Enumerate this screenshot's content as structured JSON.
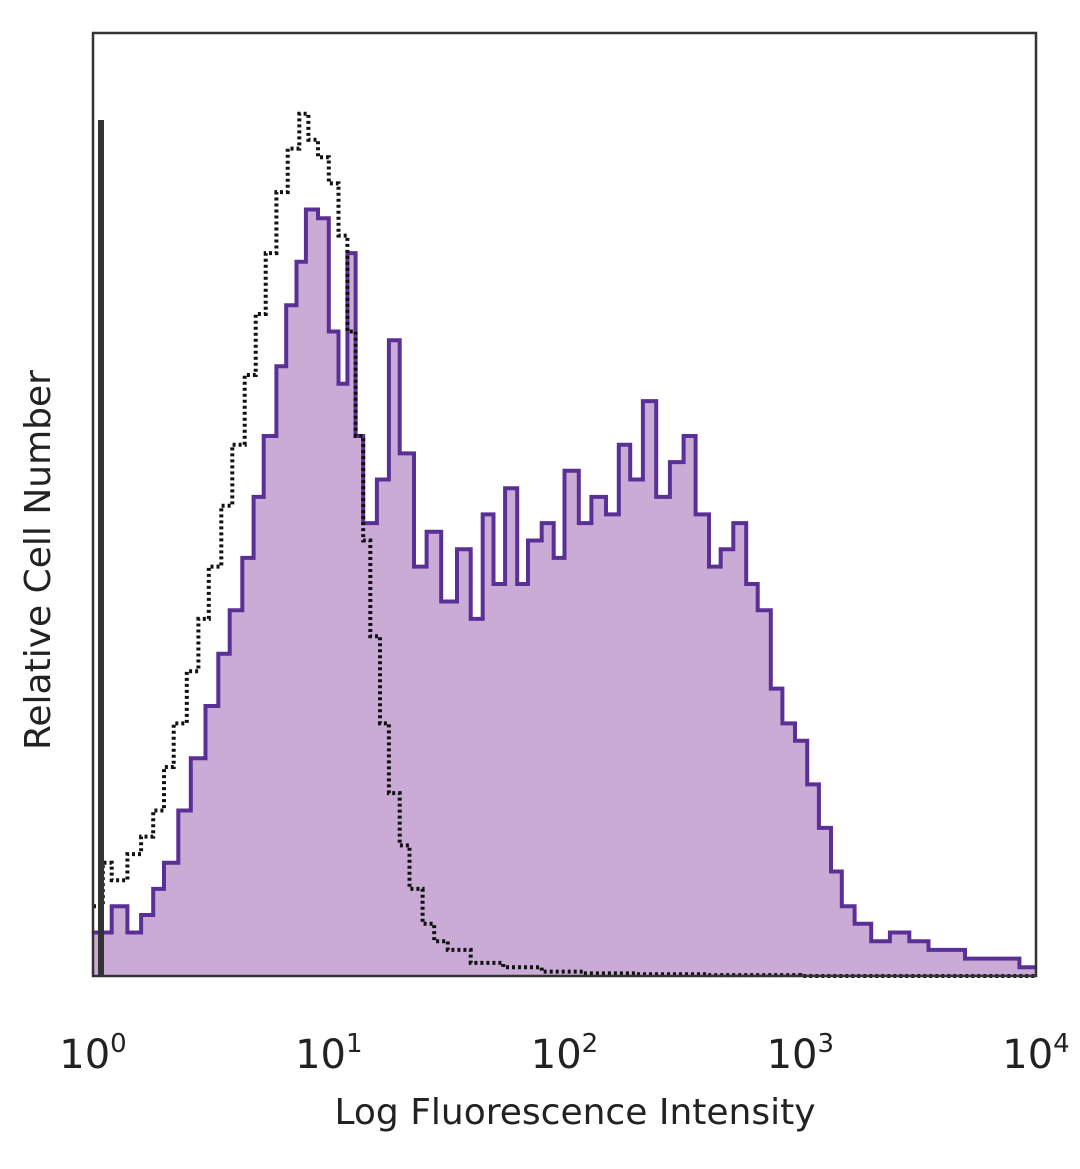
{
  "chart_data": {
    "type": "histogram",
    "xlabel": "Log Fluorescence Intensity",
    "ylabel": "Relative Cell Number",
    "x_scale": "log",
    "xlim": [
      1,
      10000
    ],
    "ylim": [
      0,
      1
    ],
    "x_ticks": [
      {
        "base": "10",
        "exp": "0",
        "value": 1
      },
      {
        "base": "10",
        "exp": "1",
        "value": 10
      },
      {
        "base": "10",
        "exp": "2",
        "value": 100
      },
      {
        "base": "10",
        "exp": "3",
        "value": 1000
      },
      {
        "base": "10",
        "exp": "4",
        "value": 10000
      }
    ],
    "grid": false,
    "series": [
      {
        "style": "filled",
        "color": "#5a3096",
        "fill": "#c9abd6",
        "points": [
          [
            1.0,
            0.05
          ],
          [
            1.2,
            0.08
          ],
          [
            1.4,
            0.05
          ],
          [
            1.6,
            0.07
          ],
          [
            1.8,
            0.1
          ],
          [
            2.0,
            0.13
          ],
          [
            2.3,
            0.19
          ],
          [
            2.6,
            0.25
          ],
          [
            3.0,
            0.31
          ],
          [
            3.4,
            0.37
          ],
          [
            3.8,
            0.42
          ],
          [
            4.3,
            0.48
          ],
          [
            4.8,
            0.55
          ],
          [
            5.3,
            0.62
          ],
          [
            6.0,
            0.7
          ],
          [
            6.6,
            0.77
          ],
          [
            7.3,
            0.82
          ],
          [
            8.0,
            0.88
          ],
          [
            9.0,
            0.87
          ],
          [
            10.0,
            0.74
          ],
          [
            11.0,
            0.68
          ],
          [
            12.0,
            0.83
          ],
          [
            13.0,
            0.62
          ],
          [
            14.0,
            0.52
          ],
          [
            16.0,
            0.57
          ],
          [
            18.0,
            0.73
          ],
          [
            20.0,
            0.6
          ],
          [
            23.0,
            0.47
          ],
          [
            26.0,
            0.51
          ],
          [
            30.0,
            0.43
          ],
          [
            35.0,
            0.49
          ],
          [
            40.0,
            0.41
          ],
          [
            45.0,
            0.53
          ],
          [
            50.0,
            0.45
          ],
          [
            56.0,
            0.56
          ],
          [
            63.0,
            0.45
          ],
          [
            70.0,
            0.5
          ],
          [
            80.0,
            0.52
          ],
          [
            90.0,
            0.48
          ],
          [
            100.0,
            0.58
          ],
          [
            115.0,
            0.52
          ],
          [
            130.0,
            0.55
          ],
          [
            150.0,
            0.53
          ],
          [
            170.0,
            0.61
          ],
          [
            190.0,
            0.57
          ],
          [
            215.0,
            0.66
          ],
          [
            245.0,
            0.55
          ],
          [
            280.0,
            0.59
          ],
          [
            320.0,
            0.62
          ],
          [
            360.0,
            0.53
          ],
          [
            410.0,
            0.47
          ],
          [
            460.0,
            0.49
          ],
          [
            520.0,
            0.52
          ],
          [
            590.0,
            0.45
          ],
          [
            660.0,
            0.42
          ],
          [
            750.0,
            0.33
          ],
          [
            840.0,
            0.29
          ],
          [
            950.0,
            0.27
          ],
          [
            1070.0,
            0.22
          ],
          [
            1200.0,
            0.17
          ],
          [
            1350.0,
            0.12
          ],
          [
            1500.0,
            0.08
          ],
          [
            1700.0,
            0.06
          ],
          [
            2000.0,
            0.04
          ],
          [
            2400.0,
            0.05
          ],
          [
            2900.0,
            0.04
          ],
          [
            3500.0,
            0.03
          ],
          [
            4200.0,
            0.03
          ],
          [
            5000.0,
            0.02
          ],
          [
            6000.0,
            0.02
          ],
          [
            7200.0,
            0.02
          ],
          [
            8500.0,
            0.01
          ],
          [
            10000.0,
            0.01
          ]
        ]
      },
      {
        "style": "dotted",
        "color": "#111111",
        "points": [
          [
            1.0,
            0.08
          ],
          [
            1.1,
            0.13
          ],
          [
            1.2,
            0.11
          ],
          [
            1.4,
            0.14
          ],
          [
            1.6,
            0.16
          ],
          [
            1.8,
            0.19
          ],
          [
            2.0,
            0.24
          ],
          [
            2.2,
            0.29
          ],
          [
            2.5,
            0.35
          ],
          [
            2.8,
            0.41
          ],
          [
            3.1,
            0.47
          ],
          [
            3.5,
            0.54
          ],
          [
            3.9,
            0.61
          ],
          [
            4.4,
            0.69
          ],
          [
            4.9,
            0.76
          ],
          [
            5.4,
            0.83
          ],
          [
            6.0,
            0.9
          ],
          [
            6.7,
            0.95
          ],
          [
            7.5,
            0.99
          ],
          [
            8.2,
            0.96
          ],
          [
            9.0,
            0.94
          ],
          [
            10.0,
            0.91
          ],
          [
            11.0,
            0.85
          ],
          [
            12.0,
            0.74
          ],
          [
            13.0,
            0.62
          ],
          [
            14.0,
            0.5
          ],
          [
            15.0,
            0.39
          ],
          [
            16.5,
            0.29
          ],
          [
            18.0,
            0.21
          ],
          [
            20.0,
            0.15
          ],
          [
            22.0,
            0.1
          ],
          [
            25.0,
            0.06
          ],
          [
            28.0,
            0.04
          ],
          [
            32.0,
            0.03
          ],
          [
            40.0,
            0.015
          ],
          [
            55.0,
            0.01
          ],
          [
            80.0,
            0.005
          ],
          [
            120.0,
            0.003
          ],
          [
            200.0,
            0.002
          ],
          [
            400.0,
            0.001
          ],
          [
            1000.0,
            0.0
          ],
          [
            10000.0,
            0.0
          ]
        ]
      }
    ]
  }
}
